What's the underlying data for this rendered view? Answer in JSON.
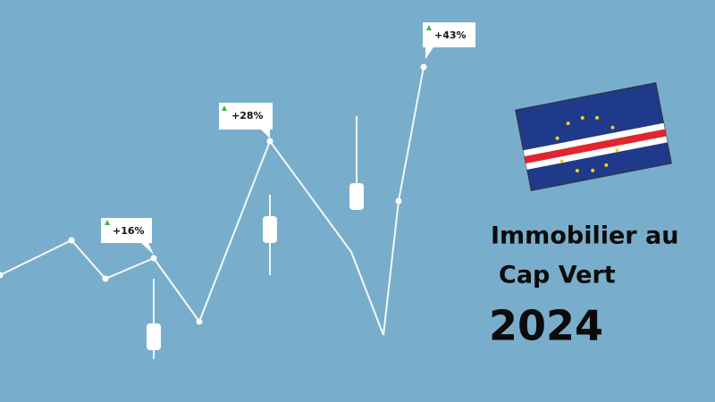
{
  "title": {
    "line1": "Immobilier au",
    "line2": "Cap Vert",
    "year": "2024"
  },
  "callouts": [
    "+16%",
    "+28%",
    "+43%"
  ]
}
